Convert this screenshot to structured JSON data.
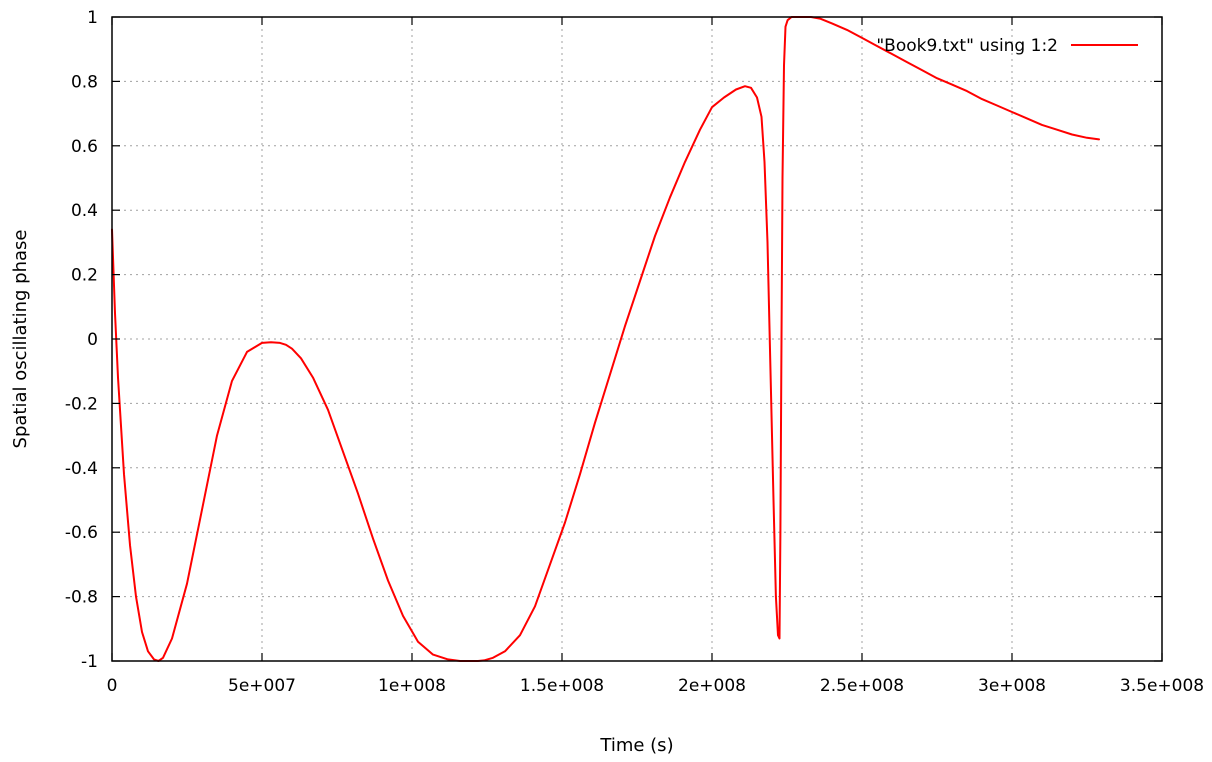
{
  "chart_data": {
    "type": "line",
    "title": "",
    "xlabel": "Time (s)",
    "ylabel": "Spatial oscillating phase",
    "xlim": [
      0,
      350000000
    ],
    "ylim": [
      -1,
      1
    ],
    "grid": true,
    "legend_position": "top-right",
    "x_ticks": [
      {
        "value": 0,
        "label": "0"
      },
      {
        "value": 50000000,
        "label": "5e+007"
      },
      {
        "value": 100000000,
        "label": "1e+008"
      },
      {
        "value": 150000000,
        "label": "1.5e+008"
      },
      {
        "value": 200000000,
        "label": "2e+008"
      },
      {
        "value": 250000000,
        "label": "2.5e+008"
      },
      {
        "value": 300000000,
        "label": "3e+008"
      },
      {
        "value": 350000000,
        "label": "3.5e+008"
      }
    ],
    "y_ticks": [
      {
        "value": -1,
        "label": "-1"
      },
      {
        "value": -0.8,
        "label": "-0.8"
      },
      {
        "value": -0.6,
        "label": "-0.6"
      },
      {
        "value": -0.4,
        "label": "-0.4"
      },
      {
        "value": -0.2,
        "label": "-0.2"
      },
      {
        "value": 0,
        "label": "0"
      },
      {
        "value": 0.2,
        "label": "0.2"
      },
      {
        "value": 0.4,
        "label": "0.4"
      },
      {
        "value": 0.6,
        "label": "0.6"
      },
      {
        "value": 0.8,
        "label": "0.8"
      },
      {
        "value": 1,
        "label": "1"
      }
    ],
    "series": [
      {
        "name": "\"Book9.txt\" using 1:2",
        "color": "#ff0000",
        "x": [
          0,
          1000000,
          2000000,
          4000000,
          6000000,
          8000000,
          10000000,
          12000000,
          14000000,
          15500000,
          17000000,
          20000000,
          25000000,
          30000000,
          35000000,
          40000000,
          45000000,
          50000000,
          53000000,
          56000000,
          58000000,
          60000000,
          63000000,
          67000000,
          72000000,
          77000000,
          82000000,
          87000000,
          92000000,
          97000000,
          102000000,
          107000000,
          112000000,
          116000000,
          119000000,
          122000000,
          124000000,
          127000000,
          131000000,
          136000000,
          141000000,
          146000000,
          151000000,
          156000000,
          161000000,
          166000000,
          171000000,
          176000000,
          181000000,
          186000000,
          191000000,
          196000000,
          200000000,
          204000000,
          208000000,
          211000000,
          213000000,
          215000000,
          216500000,
          217500000,
          218500000,
          219500000,
          220500000,
          221300000,
          222000000,
          222500000,
          222800000,
          223100000,
          223500000,
          224000000,
          224500000,
          225200000,
          226500000,
          228000000,
          230000000,
          233000000,
          236000000,
          240000000,
          245000000,
          250000000,
          255000000,
          260000000,
          265000000,
          270000000,
          275000000,
          280000000,
          285000000,
          290000000,
          295000000,
          300000000,
          305000000,
          310000000,
          315000000,
          320000000,
          325000000,
          329000000
        ],
        "y": [
          0.34,
          0.08,
          -0.12,
          -0.42,
          -0.64,
          -0.8,
          -0.91,
          -0.97,
          -0.995,
          -1.0,
          -0.99,
          -0.93,
          -0.76,
          -0.53,
          -0.3,
          -0.13,
          -0.04,
          -0.012,
          -0.01,
          -0.012,
          -0.018,
          -0.03,
          -0.06,
          -0.12,
          -0.22,
          -0.35,
          -0.48,
          -0.62,
          -0.75,
          -0.86,
          -0.94,
          -0.98,
          -0.995,
          -1.0,
          -1.0,
          -1.0,
          -0.998,
          -0.99,
          -0.97,
          -0.92,
          -0.83,
          -0.7,
          -0.57,
          -0.42,
          -0.26,
          -0.11,
          0.04,
          0.18,
          0.32,
          0.44,
          0.55,
          0.65,
          0.72,
          0.75,
          0.775,
          0.785,
          0.78,
          0.75,
          0.69,
          0.55,
          0.3,
          -0.1,
          -0.5,
          -0.8,
          -0.92,
          -0.93,
          -0.6,
          -0.1,
          0.5,
          0.85,
          0.97,
          0.99,
          1.0,
          1.0,
          1.0,
          1.0,
          0.995,
          0.98,
          0.96,
          0.935,
          0.91,
          0.885,
          0.86,
          0.835,
          0.81,
          0.79,
          0.77,
          0.745,
          0.725,
          0.705,
          0.685,
          0.665,
          0.65,
          0.635,
          0.625,
          0.62
        ]
      }
    ]
  }
}
